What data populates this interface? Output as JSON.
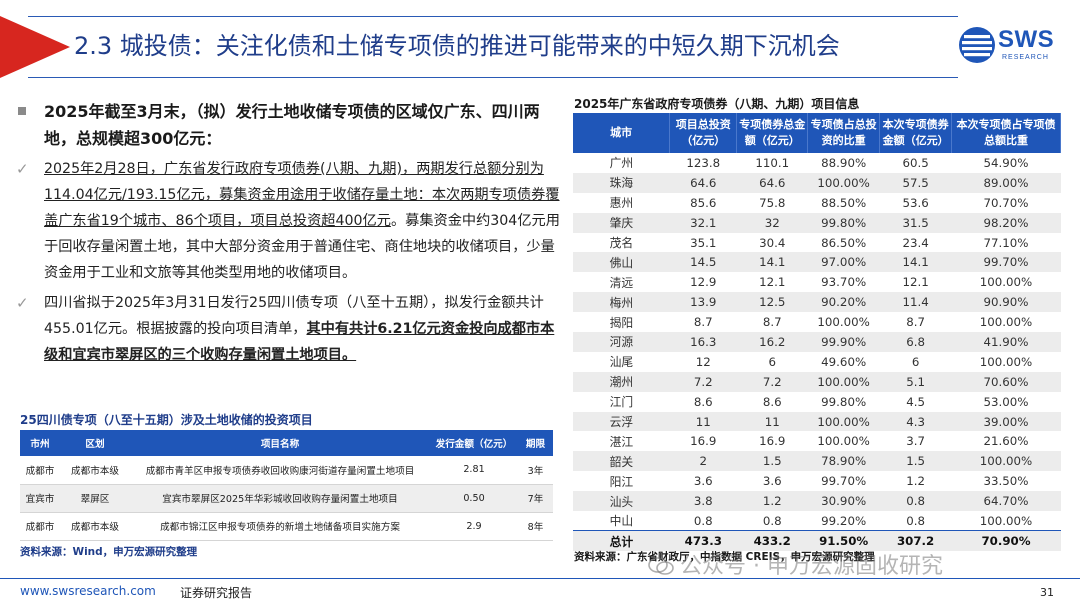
{
  "header": {
    "title": "2.3 城投债：关注化债和土储专项债的推进可能带来的中短久期下沉机会"
  },
  "logo": {
    "text": "SWS",
    "sub": "RESEARCH"
  },
  "left": {
    "bullet_main": "2025年截至3月末，（拟）发行土地收储专项债的区域仅广东、四川两地，总规模超300亿元：",
    "para1_part1": "2025年2月28日，广东省发行政府专项债券(八期、九期)，两期发行总额分别为114.04亿元/193.15亿元，募集资金用途用于收储存量土地：本次两期专项债券覆盖广东省19个城市、86个项目，项目总投资超400亿元",
    "para1_part2": "。募集资金中约304亿元用于回收存量闲置土地，其中大部分资金用于普通住宅、商住地块的收储项目，少量资金用于工业和文旅等其他类型用地的收储项目。",
    "para2_part1": "四川省拟于2025年3月31日发行25四川债专项（八至十五期），拟发行金额共计455.01亿元。根据披露的投向项目清单，",
    "para2_part2": "其中有共计6.21亿元资金投向成都市本级和宜宾市翠屏区的三个收购存量闲置土地项目。"
  },
  "small_table": {
    "title": "25四川债专项（八至十五期）涉及土地收储的投资项目",
    "headers": [
      "市州",
      "区划",
      "项目名称",
      "发行金额（亿元）",
      "期限"
    ],
    "rows": [
      [
        "成都市",
        "成都市本级",
        "成都市青羊区申报专项债券收回收购康河街道存量闲置土地项目",
        "2.81",
        "3年"
      ],
      [
        "宜宾市",
        "翠屏区",
        "宜宾市翠屏区2025年华彩城收回收购存量闲置土地项目",
        "0.50",
        "7年"
      ],
      [
        "成都市",
        "成都市本级",
        "成都市锦江区申报专项债券的新增土地储备项目实施方案",
        "2.9",
        "8年"
      ]
    ],
    "source": "资料来源：Wind，申万宏源研究整理"
  },
  "big_table": {
    "title": "2025年广东省政府专项债券（八期、九期）项目信息",
    "headers": [
      "城市",
      "项目总投资（亿元）",
      "专项债券总金额（亿元）",
      "专项债占总投资的比重",
      "本次专项债券金额（亿元）",
      "本次专项债占专项债总额比重"
    ],
    "rows": [
      [
        "广州",
        "123.8",
        "110.1",
        "88.90%",
        "60.5",
        "54.90%"
      ],
      [
        "珠海",
        "64.6",
        "64.6",
        "100.00%",
        "57.5",
        "89.00%"
      ],
      [
        "惠州",
        "85.6",
        "75.8",
        "88.50%",
        "53.6",
        "70.70%"
      ],
      [
        "肇庆",
        "32.1",
        "32",
        "99.80%",
        "31.5",
        "98.20%"
      ],
      [
        "茂名",
        "35.1",
        "30.4",
        "86.50%",
        "23.4",
        "77.10%"
      ],
      [
        "佛山",
        "14.5",
        "14.1",
        "97.00%",
        "14.1",
        "99.70%"
      ],
      [
        "清远",
        "12.9",
        "12.1",
        "93.70%",
        "12.1",
        "100.00%"
      ],
      [
        "梅州",
        "13.9",
        "12.5",
        "90.20%",
        "11.4",
        "90.90%"
      ],
      [
        "揭阳",
        "8.7",
        "8.7",
        "100.00%",
        "8.7",
        "100.00%"
      ],
      [
        "河源",
        "16.3",
        "16.2",
        "99.90%",
        "6.8",
        "41.90%"
      ],
      [
        "汕尾",
        "12",
        "6",
        "49.60%",
        "6",
        "100.00%"
      ],
      [
        "潮州",
        "7.2",
        "7.2",
        "100.00%",
        "5.1",
        "70.60%"
      ],
      [
        "江门",
        "8.6",
        "8.6",
        "99.80%",
        "4.5",
        "53.00%"
      ],
      [
        "云浮",
        "11",
        "11",
        "100.00%",
        "4.3",
        "39.00%"
      ],
      [
        "湛江",
        "16.9",
        "16.9",
        "100.00%",
        "3.7",
        "21.60%"
      ],
      [
        "韶关",
        "2",
        "1.5",
        "78.90%",
        "1.5",
        "100.00%"
      ],
      [
        "阳江",
        "3.6",
        "3.6",
        "99.70%",
        "1.2",
        "33.50%"
      ],
      [
        "汕头",
        "3.8",
        "1.2",
        "30.90%",
        "0.8",
        "64.70%"
      ],
      [
        "中山",
        "0.8",
        "0.8",
        "99.20%",
        "0.8",
        "100.00%"
      ]
    ],
    "total": [
      "总计",
      "473.3",
      "433.2",
      "91.50%",
      "307.2",
      "70.90%"
    ],
    "source": "资料来源：广东省财政厅，中指数据 CREIS，申万宏源研究整理"
  },
  "footer": {
    "url": "www.swsresearch.com",
    "label": "证券研究报告",
    "page": "31",
    "watermark": "公众号 · 申万宏源固收研究"
  }
}
